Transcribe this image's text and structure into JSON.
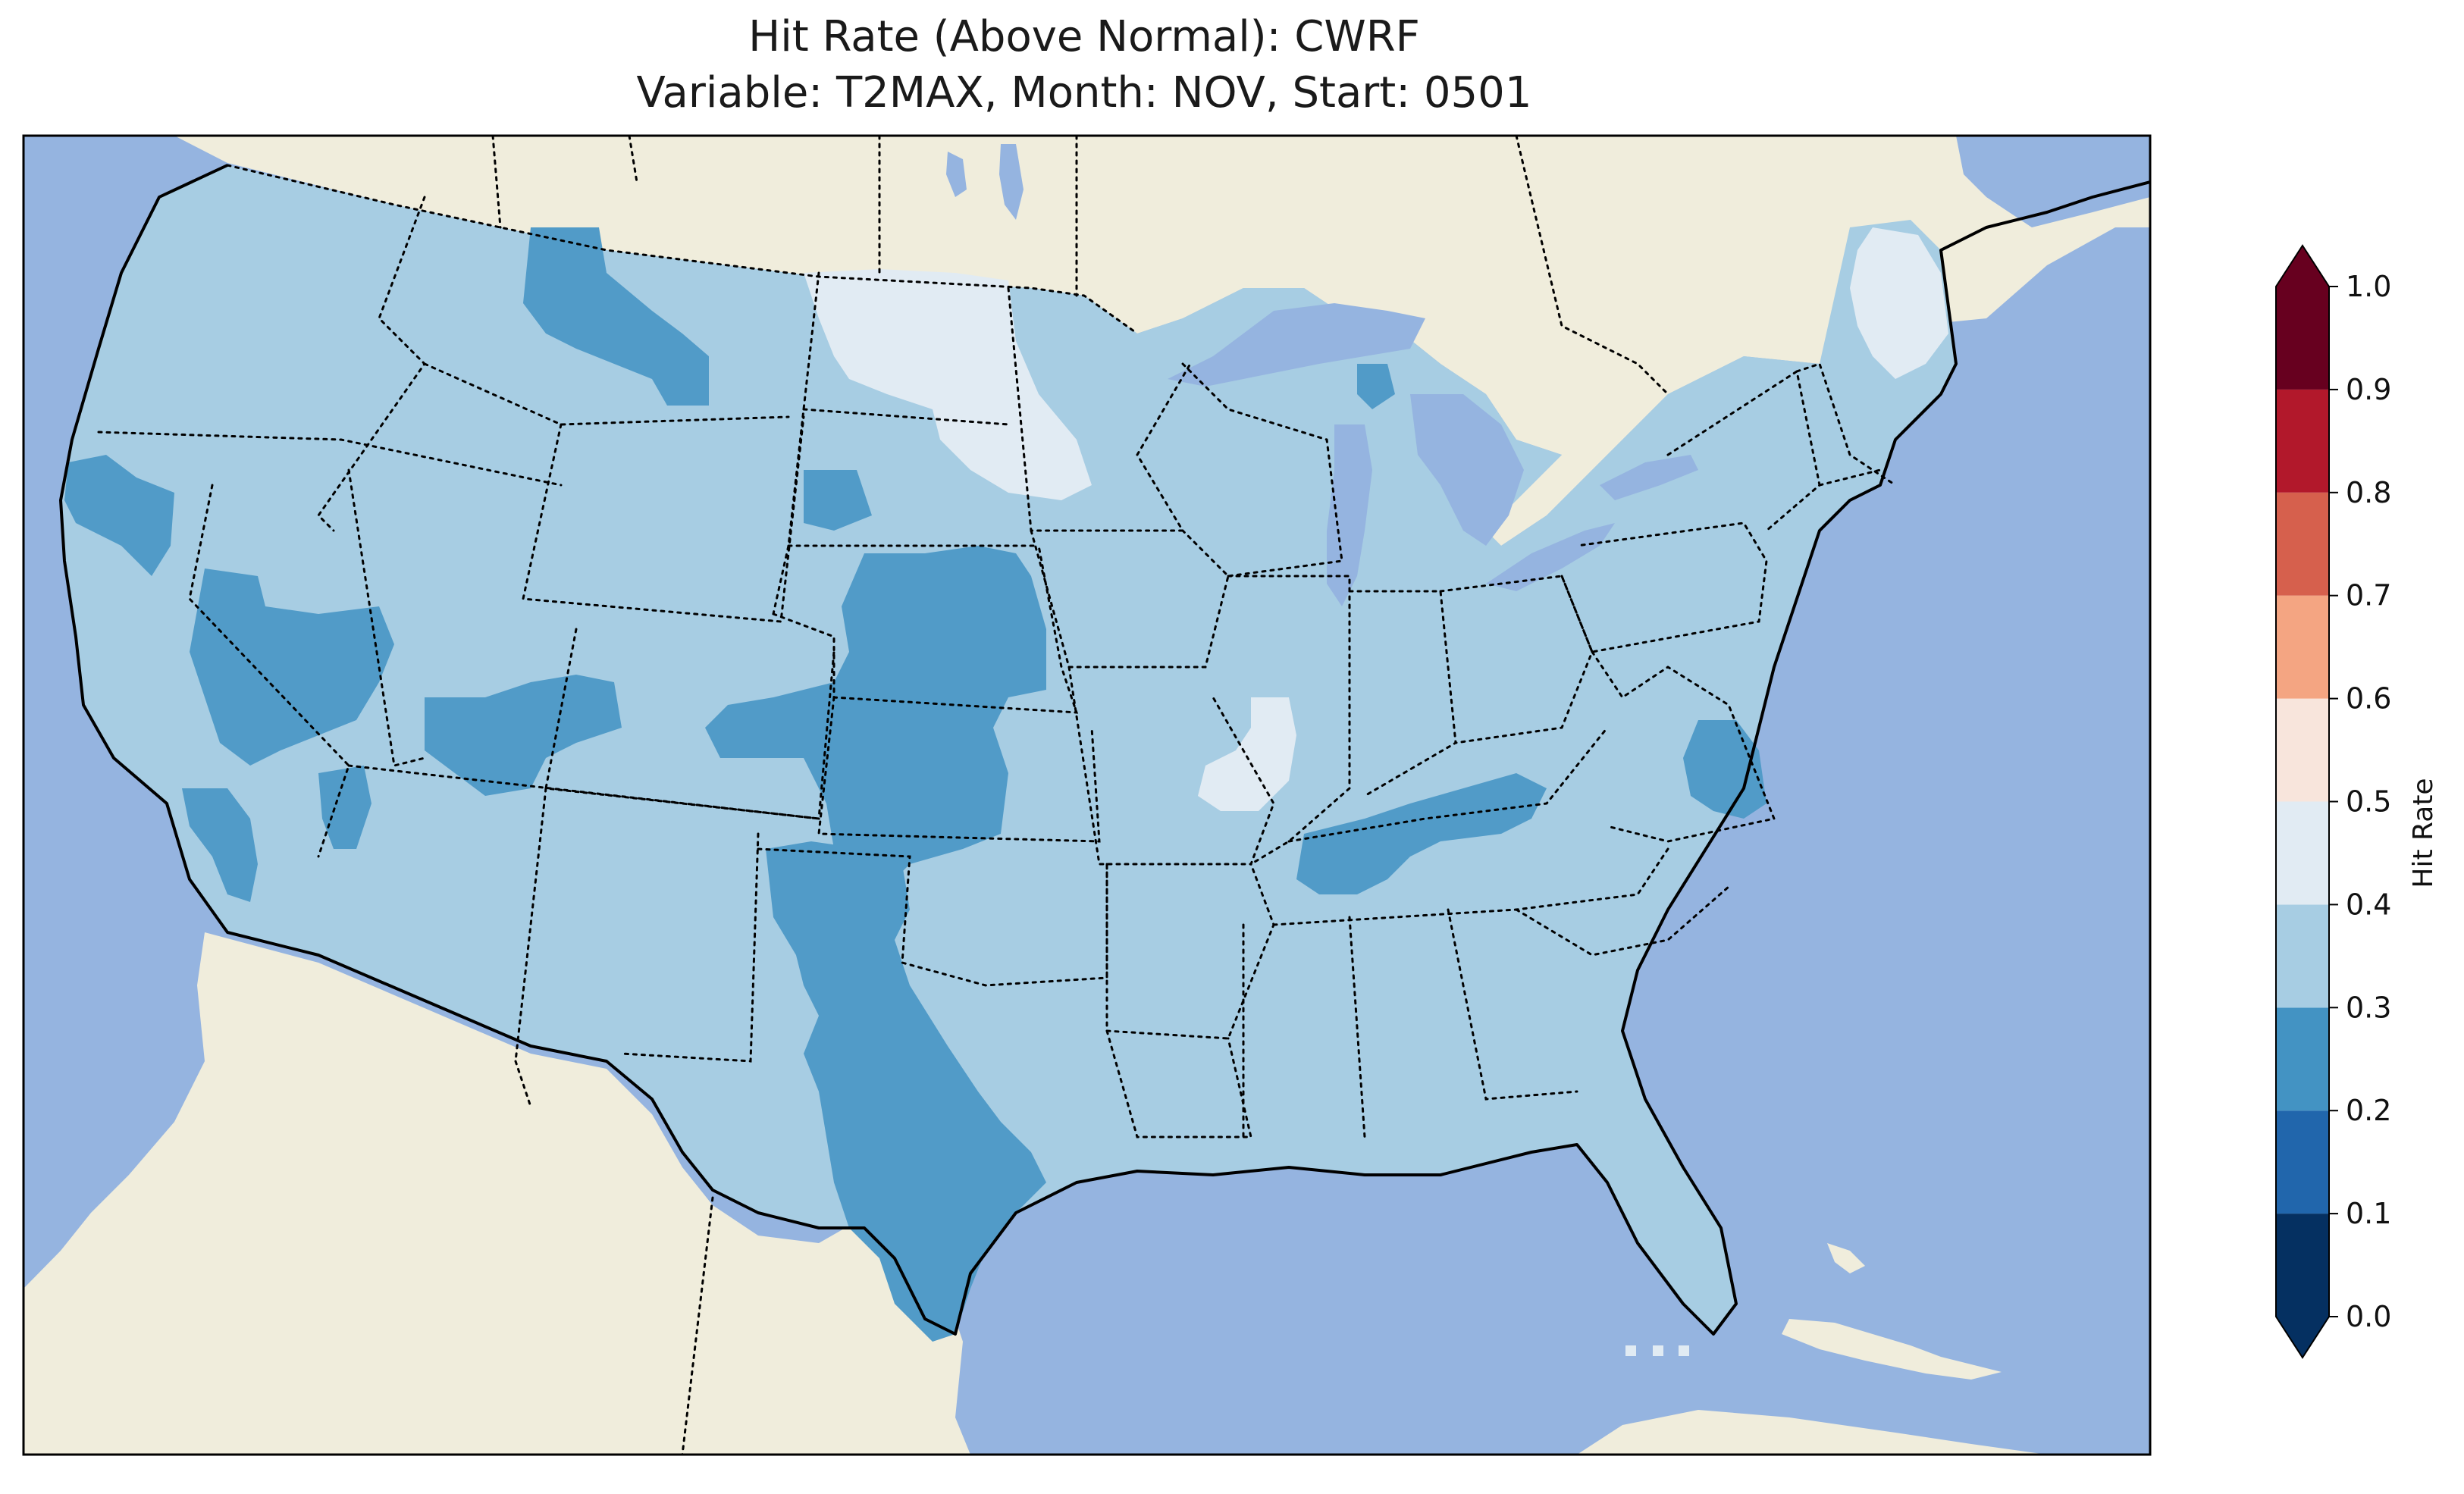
{
  "title": {
    "line1": "Hit Rate (Above Normal): CWRF",
    "line2": "Variable: T2MAX, Month: NOV, Start: 0501"
  },
  "map": {
    "colors": {
      "ocean": "#95b4e0",
      "land": "#f0eddc",
      "domain_base": "#a7cde3",
      "low_patch": "#519bc8",
      "high_patch": "#e1ebf3",
      "coastline": "#000000",
      "borders": "#000000"
    },
    "style": {
      "state_borders": "dotted",
      "coastline": "solid"
    }
  },
  "colorbar": {
    "label": "Hit Rate",
    "ticks": [
      "0.0",
      "0.1",
      "0.2",
      "0.3",
      "0.4",
      "0.5",
      "0.6",
      "0.7",
      "0.8",
      "0.9",
      "1.0"
    ],
    "extend": "both",
    "bins": [
      {
        "from": 0.0,
        "to": 0.1,
        "color": "#053061"
      },
      {
        "from": 0.1,
        "to": 0.2,
        "color": "#2166ac"
      },
      {
        "from": 0.2,
        "to": 0.3,
        "color": "#4393c3"
      },
      {
        "from": 0.3,
        "to": 0.4,
        "color": "#a7cde3"
      },
      {
        "from": 0.4,
        "to": 0.5,
        "color": "#e1ebf3"
      },
      {
        "from": 0.5,
        "to": 0.6,
        "color": "#f8e5dc"
      },
      {
        "from": 0.6,
        "to": 0.7,
        "color": "#f4a582"
      },
      {
        "from": 0.7,
        "to": 0.8,
        "color": "#d6604d"
      },
      {
        "from": 0.8,
        "to": 0.9,
        "color": "#b2182b"
      },
      {
        "from": 0.9,
        "to": 1.0,
        "color": "#67001f"
      }
    ],
    "under_color": "#053061",
    "over_color": "#67001f"
  }
}
